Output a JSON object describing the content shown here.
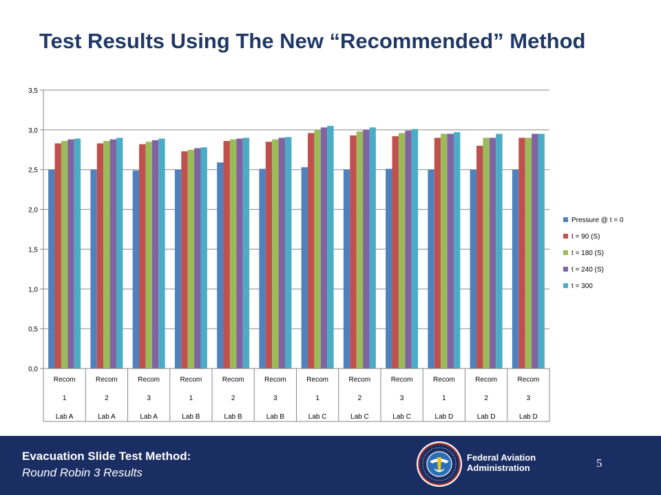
{
  "slide": {
    "title": "Test Results Using The New “Recommended” Method"
  },
  "footer": {
    "title": "Evacuation Slide Test Method:",
    "subtitle": "Round Robin 3 Results",
    "agency_line1": "Federal Aviation",
    "agency_line2": "Administration",
    "page_number": "5",
    "logo_text": "FEDERAL AVIATION ADMINISTRATION",
    "colors": {
      "background": "#1b2e63",
      "text": "#ffffff"
    }
  },
  "chart_data": {
    "type": "bar",
    "title": "",
    "xlabel": "",
    "ylabel": "",
    "ylim": [
      0,
      3.5
    ],
    "yticks": [
      "0,0",
      "0,5",
      "1,0",
      "1,5",
      "2,0",
      "2,5",
      "3,0",
      "3,5"
    ],
    "ytick_values": [
      0,
      0.5,
      1.0,
      1.5,
      2.0,
      2.5,
      3.0,
      3.5
    ],
    "grid": true,
    "legend_position": "right",
    "categories": [
      {
        "line1": "Recom",
        "line2": "1",
        "line3": "Lab A"
      },
      {
        "line1": "Recom",
        "line2": "2",
        "line3": "Lab A"
      },
      {
        "line1": "Recom",
        "line2": "3",
        "line3": "Lab A"
      },
      {
        "line1": "Recom",
        "line2": "1",
        "line3": "Lab B"
      },
      {
        "line1": "Recom",
        "line2": "2",
        "line3": "Lab B"
      },
      {
        "line1": "Recom",
        "line2": "3",
        "line3": "Lab B"
      },
      {
        "line1": "Recom",
        "line2": "1",
        "line3": "Lab C"
      },
      {
        "line1": "Recom",
        "line2": "2",
        "line3": "Lab C"
      },
      {
        "line1": "Recom",
        "line2": "3",
        "line3": "Lab C"
      },
      {
        "line1": "Recom",
        "line2": "1",
        "line3": "Lab D"
      },
      {
        "line1": "Recom",
        "line2": "2",
        "line3": "Lab D"
      },
      {
        "line1": "Recom",
        "line2": "3",
        "line3": "Lab D"
      }
    ],
    "series": [
      {
        "name": "Pressure @ t = 0",
        "color": "#4f81bd",
        "values": [
          2.5,
          2.5,
          2.49,
          2.5,
          2.59,
          2.51,
          2.53,
          2.5,
          2.51,
          2.5,
          2.5,
          2.5
        ]
      },
      {
        "name": "t = 90 (S)",
        "color": "#c0504d",
        "values": [
          2.83,
          2.83,
          2.82,
          2.73,
          2.86,
          2.85,
          2.96,
          2.93,
          2.92,
          2.9,
          2.8,
          2.9
        ]
      },
      {
        "name": "t = 180 (S)",
        "color": "#9bbb59",
        "values": [
          2.86,
          2.86,
          2.85,
          2.75,
          2.88,
          2.88,
          3.0,
          2.98,
          2.96,
          2.95,
          2.9,
          2.9
        ]
      },
      {
        "name": "t = 240 (S)",
        "color": "#8064a2",
        "values": [
          2.88,
          2.88,
          2.87,
          2.77,
          2.89,
          2.9,
          3.03,
          3.0,
          2.99,
          2.95,
          2.9,
          2.95
        ]
      },
      {
        "name": "t = 300",
        "color": "#4bacc6",
        "values": [
          2.89,
          2.9,
          2.89,
          2.78,
          2.9,
          2.91,
          3.05,
          3.03,
          3.01,
          2.97,
          2.95,
          2.95
        ]
      }
    ]
  }
}
